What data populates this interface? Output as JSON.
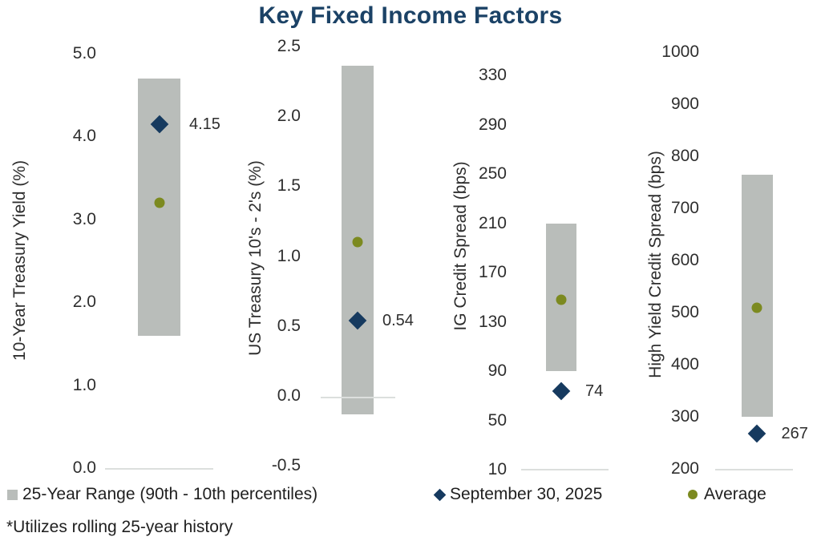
{
  "title": "Key Fixed Income Factors",
  "footnote": "*Utilizes rolling 25-year history",
  "colors": {
    "title": "#1b4266",
    "range_bar": "#b9bdba",
    "current_marker": "#163a5f",
    "average_marker": "#7c8a20",
    "axis_line": "#dcdfdd",
    "text": "#2e2e2e"
  },
  "legend": {
    "range_label": "25-Year Range (90th - 10th percentiles)",
    "current_label": "September 30, 2025",
    "average_label": "Average"
  },
  "chart_data": [
    {
      "type": "range-bar",
      "ylabel": "10-Year Treasury Yield (%)",
      "yticks": [
        "5.0",
        "4.0",
        "3.0",
        "2.0",
        "1.0",
        "0.0"
      ],
      "ylim": [
        0.0,
        5.0
      ],
      "range_90th_10th": [
        1.6,
        4.7
      ],
      "current": 4.15,
      "current_label": "4.15",
      "average": 3.2,
      "grid": "off",
      "legend_position": "bottom"
    },
    {
      "type": "range-bar",
      "ylabel": "US Treasury 10's - 2's (%)",
      "yticks": [
        "2.5",
        "2.0",
        "1.5",
        "1.0",
        "0.5",
        "0.0",
        "-0.5"
      ],
      "ylim": [
        -0.5,
        2.5
      ],
      "range_90th_10th": [
        -0.13,
        2.36
      ],
      "current": 0.54,
      "current_label": "0.54",
      "average": 1.1,
      "grid": "off",
      "legend_position": "bottom"
    },
    {
      "type": "range-bar",
      "ylabel": "IG Credit Spread (bps)",
      "yticks": [
        "330",
        "290",
        "250",
        "210",
        "170",
        "130",
        "90",
        "50",
        "10"
      ],
      "ylim": [
        10,
        330
      ],
      "range_90th_10th": [
        90,
        210
      ],
      "current": 74,
      "current_label": "74",
      "average": 148,
      "grid": "off",
      "legend_position": "bottom"
    },
    {
      "type": "range-bar",
      "ylabel": "High Yield Credit Spread (bps)",
      "yticks": [
        "1000",
        "900",
        "800",
        "700",
        "600",
        "500",
        "400",
        "300",
        "200"
      ],
      "ylim": [
        200,
        1000
      ],
      "range_90th_10th": [
        300,
        765
      ],
      "current": 267,
      "current_label": "267",
      "average": 510,
      "grid": "off",
      "legend_position": "bottom"
    }
  ]
}
